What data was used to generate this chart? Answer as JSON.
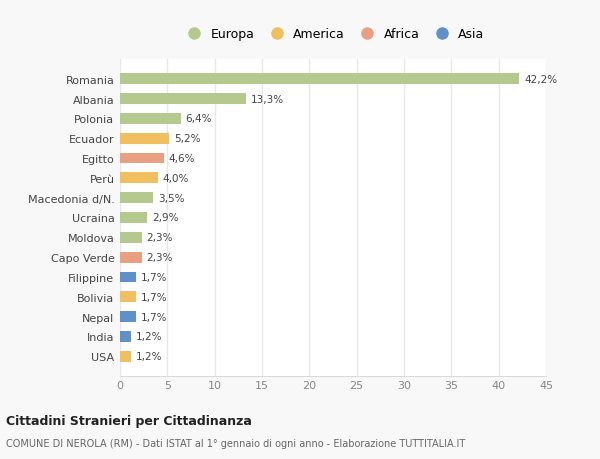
{
  "countries": [
    "Romania",
    "Albania",
    "Polonia",
    "Ecuador",
    "Egitto",
    "Perù",
    "Macedonia d/N.",
    "Ucraina",
    "Moldova",
    "Capo Verde",
    "Filippine",
    "Bolivia",
    "Nepal",
    "India",
    "USA"
  ],
  "values": [
    42.2,
    13.3,
    6.4,
    5.2,
    4.6,
    4.0,
    3.5,
    2.9,
    2.3,
    2.3,
    1.7,
    1.7,
    1.7,
    1.2,
    1.2
  ],
  "labels": [
    "42,2%",
    "13,3%",
    "6,4%",
    "5,2%",
    "4,6%",
    "4,0%",
    "3,5%",
    "2,9%",
    "2,3%",
    "2,3%",
    "1,7%",
    "1,7%",
    "1,7%",
    "1,2%",
    "1,2%"
  ],
  "continents": [
    "Europa",
    "Europa",
    "Europa",
    "America",
    "Africa",
    "America",
    "Europa",
    "Europa",
    "Europa",
    "Africa",
    "Asia",
    "America",
    "Asia",
    "Asia",
    "America"
  ],
  "continent_colors": {
    "Europa": "#b5c98e",
    "America": "#f0c060",
    "Africa": "#e8a080",
    "Asia": "#6090c8"
  },
  "legend_order": [
    "Europa",
    "America",
    "Africa",
    "Asia"
  ],
  "xlim": [
    0,
    45
  ],
  "xticks": [
    0,
    5,
    10,
    15,
    20,
    25,
    30,
    35,
    40,
    45
  ],
  "title": "Cittadini Stranieri per Cittadinanza",
  "subtitle": "COMUNE DI NEROLA (RM) - Dati ISTAT al 1° gennaio di ogni anno - Elaborazione TUTTITALIA.IT",
  "background_color": "#f8f8f8",
  "plot_bg_color": "#ffffff",
  "grid_color": "#e8e8e8",
  "bar_height": 0.55
}
